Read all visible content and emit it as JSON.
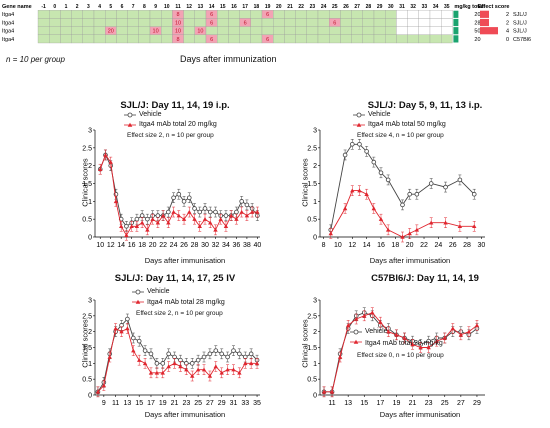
{
  "header": {
    "gene_name_label": "Gene name",
    "days": [
      "-1",
      "0",
      "1",
      "2",
      "3",
      "4",
      "5",
      "6",
      "7",
      "8",
      "9",
      "10",
      "11",
      "12",
      "13",
      "14",
      "15",
      "16",
      "17",
      "18",
      "19",
      "20",
      "21",
      "22",
      "23",
      "24",
      "25",
      "26",
      "27",
      "28",
      "29",
      "30",
      "31",
      "32",
      "33",
      "34",
      "35"
    ],
    "mgkg_label": "mg/kg total",
    "effect_label": "Effect score",
    "rows": [
      {
        "gene": "Itga4",
        "marks": [
          {
            "day": 11,
            "dose": "8"
          },
          {
            "day": 14,
            "dose": "6"
          },
          {
            "day": 19,
            "dose": "6"
          }
        ],
        "green_until": 30,
        "mgkg": "20",
        "effect": "2",
        "strain": "SJL/J"
      },
      {
        "gene": "Itga4",
        "marks": [
          {
            "day": 11,
            "dose": "10"
          },
          {
            "day": 14,
            "dose": "6"
          },
          {
            "day": 17,
            "dose": "6"
          },
          {
            "day": 25,
            "dose": "6"
          }
        ],
        "green_until": 30,
        "mgkg": "28",
        "effect": "2",
        "strain": "SJL/J"
      },
      {
        "gene": "Itga4",
        "marks": [
          {
            "day": 5,
            "dose": "20"
          },
          {
            "day": 9,
            "dose": "10"
          },
          {
            "day": 11,
            "dose": "10"
          },
          {
            "day": 13,
            "dose": "10"
          }
        ],
        "green_until": 30,
        "mgkg": "50",
        "effect": "4",
        "strain": "SJL/J"
      },
      {
        "gene": "Itga4",
        "marks": [
          {
            "day": 11,
            "dose": "8"
          },
          {
            "day": 14,
            "dose": "6"
          },
          {
            "day": 19,
            "dose": "6"
          }
        ],
        "green_until": 35,
        "mgkg": "20",
        "effect": "0",
        "strain": "C57Bl6"
      }
    ],
    "n_note": "n = 10 per group",
    "days_label": "Days after immunization",
    "colors": {
      "green": "#c7e6b0",
      "pink": "#f3a3b4",
      "teal": "#1aa36f",
      "effect_bar": "#ef4b56"
    }
  },
  "chart_data": [
    {
      "type": "line",
      "title": "SJL/J: Day 11, 14, 19 i.p.",
      "xlabel": "Days after immunisation",
      "ylabel": "Clinical scores",
      "xlim": [
        9,
        40.5
      ],
      "ylim": [
        0,
        3
      ],
      "xticks": [
        10,
        12,
        14,
        16,
        18,
        20,
        22,
        24,
        26,
        28,
        30,
        32,
        34,
        36,
        38,
        40
      ],
      "yticks": [
        0,
        0.5,
        1,
        1.5,
        2,
        2.5,
        3
      ],
      "legend_vehicle": "Vehicle",
      "legend_treated": "Itga4 mAb total 20 mg/kg",
      "effect_note": "Effect size 2, n = 10 per group",
      "x": [
        10,
        11,
        12,
        13,
        14,
        15,
        16,
        17,
        18,
        19,
        20,
        21,
        22,
        23,
        24,
        25,
        26,
        27,
        28,
        29,
        30,
        31,
        32,
        33,
        34,
        35,
        36,
        37,
        38,
        39,
        40
      ],
      "series": [
        {
          "name": "Vehicle",
          "values": [
            1.9,
            2.3,
            2.0,
            1.2,
            0.5,
            0.3,
            0.4,
            0.5,
            0.6,
            0.5,
            0.6,
            0.6,
            0.6,
            0.7,
            1.1,
            1.2,
            1.0,
            1.1,
            0.8,
            0.7,
            0.8,
            0.7,
            0.7,
            0.6,
            0.6,
            0.6,
            0.7,
            1.0,
            0.9,
            0.8,
            0.6
          ]
        },
        {
          "name": "Itga4 mAb total 20 mg/kg",
          "values": [
            1.9,
            2.3,
            2.1,
            1.0,
            0.3,
            0.05,
            0.3,
            0.3,
            0.4,
            0.2,
            0.5,
            0.4,
            0.6,
            0.4,
            0.7,
            0.6,
            0.5,
            0.7,
            0.5,
            0.3,
            0.5,
            0.4,
            0.2,
            0.5,
            0.3,
            0.6,
            0.5,
            0.7,
            0.6,
            0.7,
            0.7
          ]
        }
      ]
    },
    {
      "type": "line",
      "title": "SJL/J: Day 5, 9, 11, 13 i.p.",
      "xlabel": "Days after immunisation",
      "ylabel": "Clinical scores",
      "xlim": [
        7.5,
        30.5
      ],
      "ylim": [
        0,
        3
      ],
      "xticks": [
        8,
        10,
        12,
        14,
        16,
        18,
        20,
        22,
        24,
        26,
        28,
        30
      ],
      "yticks": [
        0,
        0.5,
        1,
        1.5,
        2,
        2.5,
        3
      ],
      "legend_vehicle": "Vehicle",
      "legend_treated": "Itga4 mAb total 50 mg/kg",
      "effect_note": "Effect size 4, n = 10 per group",
      "x": [
        9,
        11,
        12,
        13,
        14,
        15,
        16,
        17,
        19,
        20,
        21,
        23,
        25,
        27,
        29
      ],
      "series": [
        {
          "name": "Vehicle",
          "values": [
            0.2,
            2.3,
            2.6,
            2.6,
            2.4,
            2.1,
            1.8,
            1.6,
            0.9,
            1.2,
            1.2,
            1.5,
            1.4,
            1.6,
            1.2
          ]
        },
        {
          "name": "Itga4 mAb total 50 mg/kg",
          "values": [
            0.1,
            0.8,
            1.3,
            1.3,
            1.2,
            0.8,
            0.5,
            0.2,
            0.0,
            0.1,
            0.2,
            0.4,
            0.4,
            0.3,
            0.3
          ]
        }
      ]
    },
    {
      "type": "line",
      "title": "SJL/J: Day 11, 14, 17, 25 IV",
      "xlabel": "Days after immunisation",
      "ylabel": "Clinical scores",
      "xlim": [
        7.5,
        35.5
      ],
      "ylim": [
        0,
        3
      ],
      "xticks": [
        9,
        11,
        13,
        15,
        17,
        19,
        21,
        23,
        25,
        27,
        29,
        31,
        33,
        35
      ],
      "yticks": [
        0,
        0.5,
        1,
        1.5,
        2,
        2.5,
        3
      ],
      "legend_vehicle": "Vehicle",
      "legend_treated": "Itga4 mAb total 28 mg/kg",
      "effect_note": "Effect size 2, n = 10 per group",
      "x": [
        8,
        9,
        10,
        11,
        12,
        13,
        14,
        15,
        16,
        17,
        18,
        19,
        20,
        21,
        22,
        23,
        24,
        25,
        26,
        27,
        28,
        29,
        30,
        31,
        32,
        33,
        34,
        35
      ],
      "series": [
        {
          "name": "Vehicle",
          "values": [
            0.1,
            0.4,
            1.3,
            2.0,
            2.2,
            2.4,
            1.8,
            1.7,
            1.4,
            1.3,
            1.0,
            1.0,
            1.3,
            1.2,
            1.1,
            1.0,
            1.0,
            1.1,
            1.2,
            1.3,
            1.4,
            1.3,
            1.2,
            1.4,
            1.3,
            1.2,
            1.3,
            1.1
          ]
        },
        {
          "name": "Itga4 mAb total 28 mg/kg",
          "values": [
            0.1,
            0.3,
            1.2,
            2.1,
            2.0,
            2.1,
            1.4,
            1.1,
            1.0,
            0.7,
            0.7,
            0.7,
            0.9,
            1.0,
            0.9,
            0.8,
            0.6,
            0.8,
            0.8,
            0.6,
            0.9,
            0.7,
            0.8,
            0.8,
            0.7,
            1.0,
            1.0,
            1.0
          ]
        }
      ]
    },
    {
      "type": "line",
      "title": "C57Bl6/J: Day 11, 14, 19",
      "xlabel": "Days after immunisation",
      "ylabel": "Clinical scores",
      "xlim": [
        9.5,
        30
      ],
      "ylim": [
        0,
        3
      ],
      "xticks": [
        11,
        13,
        15,
        17,
        19,
        21,
        23,
        25,
        27,
        29
      ],
      "yticks": [
        0,
        0.5,
        1,
        1.5,
        2,
        2.5,
        3
      ],
      "legend_vehicle": "Vehicle",
      "legend_treated": "Itga4 mAb total 20 mg/kg",
      "effect_note": "Effect size 0, n = 10 per group",
      "x": [
        10,
        11,
        12,
        13,
        14,
        15,
        16,
        17,
        18,
        19,
        20,
        21,
        22,
        23,
        24,
        25,
        26,
        27,
        28,
        29
      ],
      "series": [
        {
          "name": "Vehicle",
          "values": [
            0.1,
            0.1,
            1.3,
            2.1,
            2.5,
            2.6,
            2.5,
            2.2,
            2.1,
            1.9,
            1.8,
            1.7,
            1.6,
            1.7,
            1.8,
            1.8,
            2.0,
            2.0,
            1.9,
            2.1
          ]
        },
        {
          "name": "Itga4 mAb total 20 mg/kg",
          "values": [
            0.1,
            0.1,
            1.2,
            2.2,
            2.4,
            2.5,
            2.6,
            2.3,
            2.0,
            1.9,
            1.8,
            1.6,
            1.5,
            1.5,
            1.7,
            1.8,
            2.1,
            1.9,
            2.0,
            2.2
          ]
        }
      ]
    }
  ]
}
